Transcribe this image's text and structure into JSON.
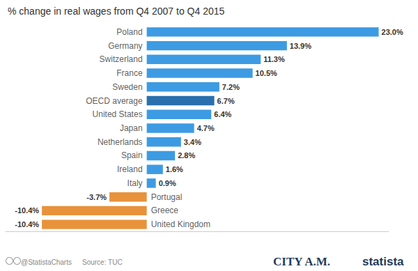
{
  "chart_data": {
    "type": "bar",
    "title": "% change in real wages from Q4 2007 to Q4 2015",
    "orientation": "horizontal",
    "categories": [
      "Poland",
      "Germany",
      "Switzerland",
      "France",
      "Sweden",
      "OECD average",
      "United States",
      "Japan",
      "Netherlands",
      "Spain",
      "Ireland",
      "Italy",
      "Portugal",
      "Greece",
      "United Kingdom"
    ],
    "values": [
      23.0,
      13.9,
      11.3,
      10.5,
      7.2,
      6.7,
      6.4,
      4.7,
      3.4,
      2.8,
      1.6,
      0.9,
      -3.7,
      -10.4,
      -10.4
    ],
    "value_labels": [
      "23.0%",
      "13.9%",
      "11.3%",
      "10.5%",
      "7.2%",
      "6.7%",
      "6.4%",
      "4.7%",
      "3.4%",
      "2.8%",
      "1.6%",
      "0.9%",
      "-3.7%",
      "-10.4%",
      "-10.4%"
    ],
    "colors": [
      "#3d9be3",
      "#3d9be3",
      "#3d9be3",
      "#3d9be3",
      "#3d9be3",
      "#2a6fae",
      "#3d9be3",
      "#3d9be3",
      "#3d9be3",
      "#3d9be3",
      "#3d9be3",
      "#3d9be3",
      "#e8923b",
      "#e8923b",
      "#e8923b"
    ],
    "xlim": [
      -14,
      24
    ],
    "grid": false,
    "data_labels": true,
    "tick_labels": "y",
    "annotations": [
      "@StatistaCharts",
      "Source: TUC",
      "CITY A.M.",
      "statista"
    ]
  }
}
